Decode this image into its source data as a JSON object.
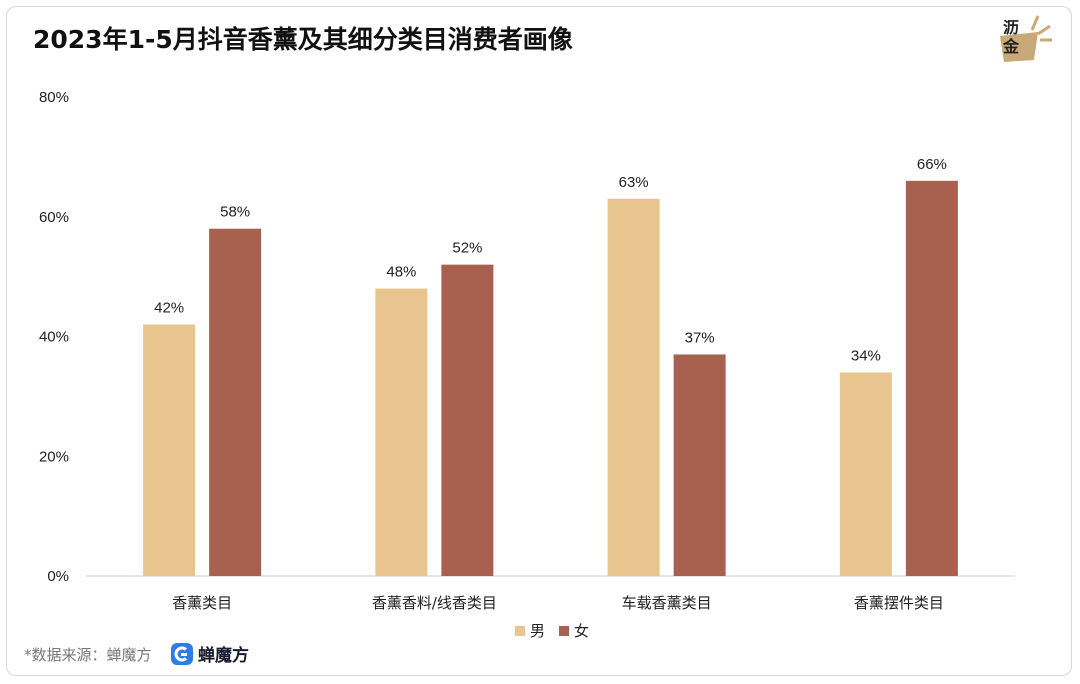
{
  "title": "2023年1-5月抖音香薰及其细分类目消费者画像",
  "logo": {
    "text": "沥金",
    "icon": "lijin-logo-icon"
  },
  "source": {
    "label": "*数据来源：蝉魔方",
    "brand": "蝉魔方",
    "brand_icon": "chanmofang-logo-icon"
  },
  "colors": {
    "male": "#E8C48E",
    "female": "#A8614F",
    "axis": "#d0d0d0"
  },
  "legend": [
    {
      "name": "男",
      "color": "#E8C48E"
    },
    {
      "name": "女",
      "color": "#A8614F"
    }
  ],
  "chart_data": {
    "type": "bar",
    "categories": [
      "香薰类目",
      "香薰香料/线香类目",
      "车载香薰类目",
      "香薰摆件类目"
    ],
    "series": [
      {
        "name": "男",
        "values": [
          42,
          48,
          63,
          34
        ],
        "labels": [
          "42%",
          "48%",
          "63%",
          "34%"
        ]
      },
      {
        "name": "女",
        "values": [
          58,
          52,
          37,
          66
        ],
        "labels": [
          "58%",
          "52%",
          "37%",
          "66%"
        ]
      }
    ],
    "yticks": [
      "0%",
      "20%",
      "40%",
      "60%",
      "80%"
    ],
    "ylim": [
      0,
      80
    ],
    "xlabel": "",
    "ylabel": "",
    "grid": false,
    "legend_position": "bottom"
  }
}
